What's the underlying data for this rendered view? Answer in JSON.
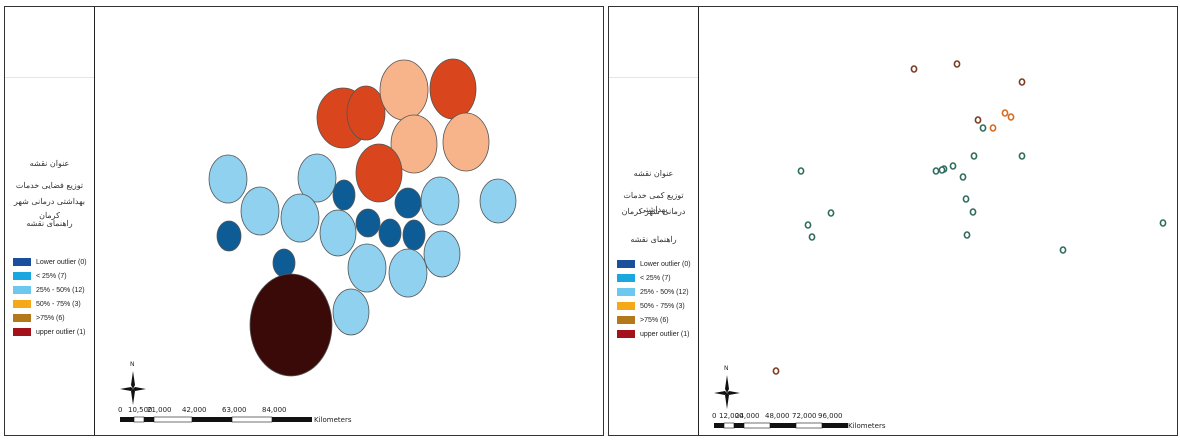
{
  "left_panel": {
    "legend": {
      "title_label": "عنوان نقشه",
      "title_line1": "توزیع فضایی خدمات",
      "title_line2": "بهداشتی درمانی شهر کرمان",
      "key_label": "راهنمای نقشه",
      "items": [
        {
          "label": "Lower outlier (0)",
          "color": "#1a4f9c"
        },
        {
          "label": "< 25% (7)",
          "color": "#1aa7e0"
        },
        {
          "label": "25% - 50% (12)",
          "color": "#6cc8ef"
        },
        {
          "label": "50% - 75% (3)",
          "color": "#f5a818"
        },
        {
          "label": ">75% (6)",
          "color": "#b2781a"
        },
        {
          "label": "upper outlier (1)",
          "color": "#a3111b"
        }
      ]
    },
    "north_label": "N",
    "scale": {
      "ticks": [
        "0",
        "10,500",
        "21,000",
        "42,000",
        "63,000",
        "84,000"
      ],
      "unit": "Kilometers"
    },
    "circle_colors": {
      "dark_red_orange": "#d9451c",
      "peach": "#f7b48a",
      "light_blue": "#8fd1ee",
      "dark_blue": "#0e5c95",
      "maroon": "#3a0a08"
    }
  },
  "right_panel": {
    "legend": {
      "title_label": "عنوان نقشه",
      "title_line1": "توزیع کمی خدمات بهداشتی",
      "title_line2": "درمانی شهر کرمان",
      "key_label": "راهنمای نقشه",
      "items": [
        {
          "label": "Lower outlier (0)",
          "color": "#1a4f9c"
        },
        {
          "label": "< 25% (7)",
          "color": "#1aa7e0"
        },
        {
          "label": "25% - 50% (12)",
          "color": "#6cc8ef"
        },
        {
          "label": "50% - 75% (3)",
          "color": "#f5a818"
        },
        {
          "label": ">75% (6)",
          "color": "#b2781a"
        },
        {
          "label": "upper outlier (1)",
          "color": "#a3111b"
        }
      ]
    },
    "north_label": "N",
    "scale": {
      "ticks": [
        "0",
        "12,000",
        "24,000",
        "48,000",
        "72,000",
        "96,000"
      ],
      "unit": "Kilometers"
    },
    "marker_colors": {
      "teal": "#2e6b5e",
      "brown": "#7a3b1e",
      "orange": "#d96a1e"
    }
  }
}
